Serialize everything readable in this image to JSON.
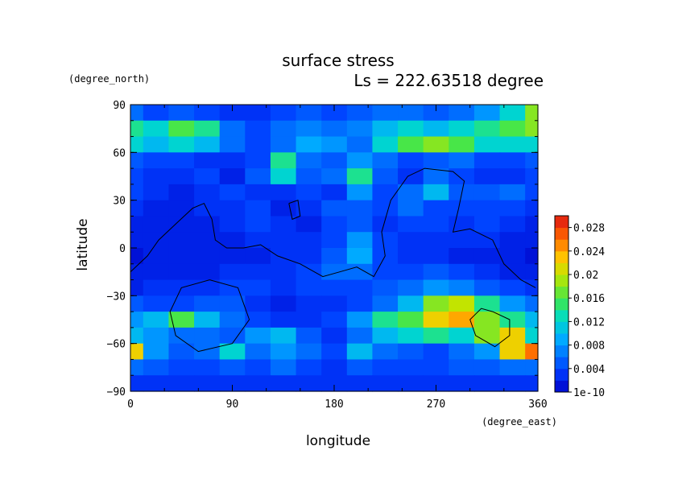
{
  "chart_data": {
    "type": "heatmap",
    "title": "surface stress",
    "subtitle": "Ls = 222.63518 degree",
    "xlabel": "longitude",
    "ylabel": "latitude",
    "x_units": "(degree_east)",
    "y_units": "(degree_north)",
    "xlim": [
      0,
      360
    ],
    "ylim": [
      -90,
      90
    ],
    "x_ticks": [
      "0",
      "90",
      "180",
      "270",
      "360"
    ],
    "y_ticks": [
      "90",
      "60",
      "30",
      "0",
      "−30",
      "−60",
      "−90"
    ],
    "colorbar": {
      "min": 0,
      "max": 0.03,
      "tick_labels": [
        "1e-10",
        "0.004",
        "0.008",
        "0.012",
        "0.016",
        "0.02",
        "0.024",
        "0.028"
      ],
      "tick_values": [
        0,
        0.004,
        0.008,
        0.012,
        0.016,
        0.02,
        0.024,
        0.028
      ]
    },
    "grid": false,
    "legend": "colorbar-right",
    "field": {
      "lon": [
        0,
        22.5,
        45,
        67.5,
        90,
        112.5,
        135,
        157.5,
        180,
        202.5,
        225,
        247.5,
        270,
        292.5,
        315,
        337.5,
        360
      ],
      "lat": [
        85,
        75,
        65,
        55,
        45,
        35,
        25,
        15,
        5,
        -5,
        -15,
        -25,
        -35,
        -45,
        -55,
        -65,
        -75,
        -85
      ],
      "values": [
        [
          0.006,
          0.004,
          0.005,
          0.004,
          0.003,
          0.003,
          0.004,
          0.005,
          0.004,
          0.005,
          0.006,
          0.006,
          0.005,
          0.006,
          0.008,
          0.012,
          0.018
        ],
        [
          0.014,
          0.012,
          0.016,
          0.014,
          0.006,
          0.004,
          0.006,
          0.007,
          0.006,
          0.007,
          0.01,
          0.012,
          0.01,
          0.012,
          0.014,
          0.016,
          0.018
        ],
        [
          0.012,
          0.01,
          0.012,
          0.01,
          0.006,
          0.004,
          0.006,
          0.009,
          0.008,
          0.006,
          0.012,
          0.016,
          0.018,
          0.016,
          0.012,
          0.012,
          0.012
        ],
        [
          0.005,
          0.004,
          0.004,
          0.003,
          0.003,
          0.004,
          0.014,
          0.006,
          0.005,
          0.008,
          0.006,
          0.004,
          0.005,
          0.006,
          0.004,
          0.004,
          0.005
        ],
        [
          0.004,
          0.003,
          0.003,
          0.004,
          0.002,
          0.005,
          0.012,
          0.005,
          0.006,
          0.014,
          0.005,
          0.003,
          0.006,
          0.004,
          0.003,
          0.003,
          0.004
        ],
        [
          0.004,
          0.003,
          0.002,
          0.003,
          0.004,
          0.003,
          0.003,
          0.004,
          0.003,
          0.008,
          0.004,
          0.006,
          0.01,
          0.005,
          0.005,
          0.006,
          0.004
        ],
        [
          0.003,
          0.002,
          0.002,
          0.003,
          0.003,
          0.004,
          0.002,
          0.003,
          0.005,
          0.005,
          0.004,
          0.006,
          0.004,
          0.004,
          0.004,
          0.004,
          0.003
        ],
        [
          0.002,
          0.002,
          0.002,
          0.002,
          0.003,
          0.004,
          0.003,
          0.002,
          0.004,
          0.005,
          0.003,
          0.004,
          0.004,
          0.003,
          0.004,
          0.003,
          0.002
        ],
        [
          0.002,
          0.002,
          0.002,
          0.002,
          0.002,
          0.003,
          0.003,
          0.003,
          0.004,
          0.008,
          0.004,
          0.003,
          0.003,
          0.003,
          0.003,
          0.002,
          0.002
        ],
        [
          0.001,
          0.002,
          0.002,
          0.002,
          0.002,
          0.002,
          0.003,
          0.003,
          0.005,
          0.009,
          0.004,
          0.003,
          0.003,
          0.002,
          0.002,
          0.002,
          0.001
        ],
        [
          0.002,
          0.002,
          0.002,
          0.002,
          0.003,
          0.003,
          0.003,
          0.004,
          0.006,
          0.006,
          0.004,
          0.004,
          0.005,
          0.004,
          0.003,
          0.002,
          0.002
        ],
        [
          0.002,
          0.003,
          0.003,
          0.003,
          0.004,
          0.004,
          0.003,
          0.004,
          0.004,
          0.004,
          0.005,
          0.006,
          0.008,
          0.007,
          0.005,
          0.004,
          0.003
        ],
        [
          0.005,
          0.004,
          0.004,
          0.005,
          0.005,
          0.003,
          0.002,
          0.003,
          0.003,
          0.004,
          0.006,
          0.01,
          0.018,
          0.02,
          0.014,
          0.008,
          0.006
        ],
        [
          0.008,
          0.01,
          0.016,
          0.01,
          0.006,
          0.004,
          0.003,
          0.003,
          0.004,
          0.008,
          0.014,
          0.016,
          0.022,
          0.024,
          0.018,
          0.014,
          0.01
        ],
        [
          0.01,
          0.008,
          0.006,
          0.006,
          0.005,
          0.008,
          0.01,
          0.005,
          0.003,
          0.006,
          0.01,
          0.012,
          0.014,
          0.012,
          0.018,
          0.022,
          0.012
        ],
        [
          0.022,
          0.008,
          0.005,
          0.006,
          0.012,
          0.006,
          0.008,
          0.006,
          0.004,
          0.01,
          0.006,
          0.005,
          0.004,
          0.006,
          0.008,
          0.022,
          0.026
        ],
        [
          0.006,
          0.005,
          0.004,
          0.004,
          0.005,
          0.004,
          0.006,
          0.004,
          0.003,
          0.005,
          0.004,
          0.004,
          0.004,
          0.005,
          0.005,
          0.006,
          0.006
        ],
        [
          0.003,
          0.003,
          0.003,
          0.003,
          0.003,
          0.003,
          0.003,
          0.003,
          0.003,
          0.003,
          0.003,
          0.003,
          0.003,
          0.003,
          0.003,
          0.003,
          0.003
        ]
      ]
    },
    "contours": [
      [
        [
          0,
          -15
        ],
        [
          15,
          -5
        ],
        [
          25,
          5
        ],
        [
          40,
          15
        ],
        [
          55,
          25
        ],
        [
          65,
          28
        ],
        [
          72,
          18
        ],
        [
          75,
          5
        ],
        [
          85,
          0
        ],
        [
          100,
          0
        ],
        [
          115,
          2
        ],
        [
          130,
          -5
        ],
        [
          150,
          -10
        ],
        [
          170,
          -18
        ],
        [
          185,
          -15
        ],
        [
          200,
          -12
        ],
        [
          215,
          -18
        ],
        [
          225,
          -5
        ],
        [
          222,
          10
        ],
        [
          230,
          30
        ],
        [
          245,
          45
        ],
        [
          260,
          50
        ],
        [
          285,
          48
        ],
        [
          295,
          42
        ],
        [
          290,
          25
        ],
        [
          285,
          10
        ],
        [
          300,
          12
        ],
        [
          320,
          5
        ],
        [
          330,
          -10
        ],
        [
          345,
          -20
        ],
        [
          358,
          -25
        ]
      ],
      [
        [
          70,
          -20
        ],
        [
          95,
          -25
        ],
        [
          105,
          -45
        ],
        [
          90,
          -60
        ],
        [
          60,
          -65
        ],
        [
          40,
          -55
        ],
        [
          35,
          -40
        ],
        [
          45,
          -25
        ],
        [
          70,
          -20
        ]
      ],
      [
        [
          140,
          28
        ],
        [
          148,
          30
        ],
        [
          150,
          20
        ],
        [
          143,
          18
        ],
        [
          140,
          28
        ]
      ],
      [
        [
          320,
          -40
        ],
        [
          335,
          -45
        ],
        [
          335,
          -55
        ],
        [
          322,
          -62
        ],
        [
          305,
          -55
        ],
        [
          300,
          -45
        ],
        [
          310,
          -38
        ],
        [
          320,
          -40
        ]
      ]
    ]
  }
}
